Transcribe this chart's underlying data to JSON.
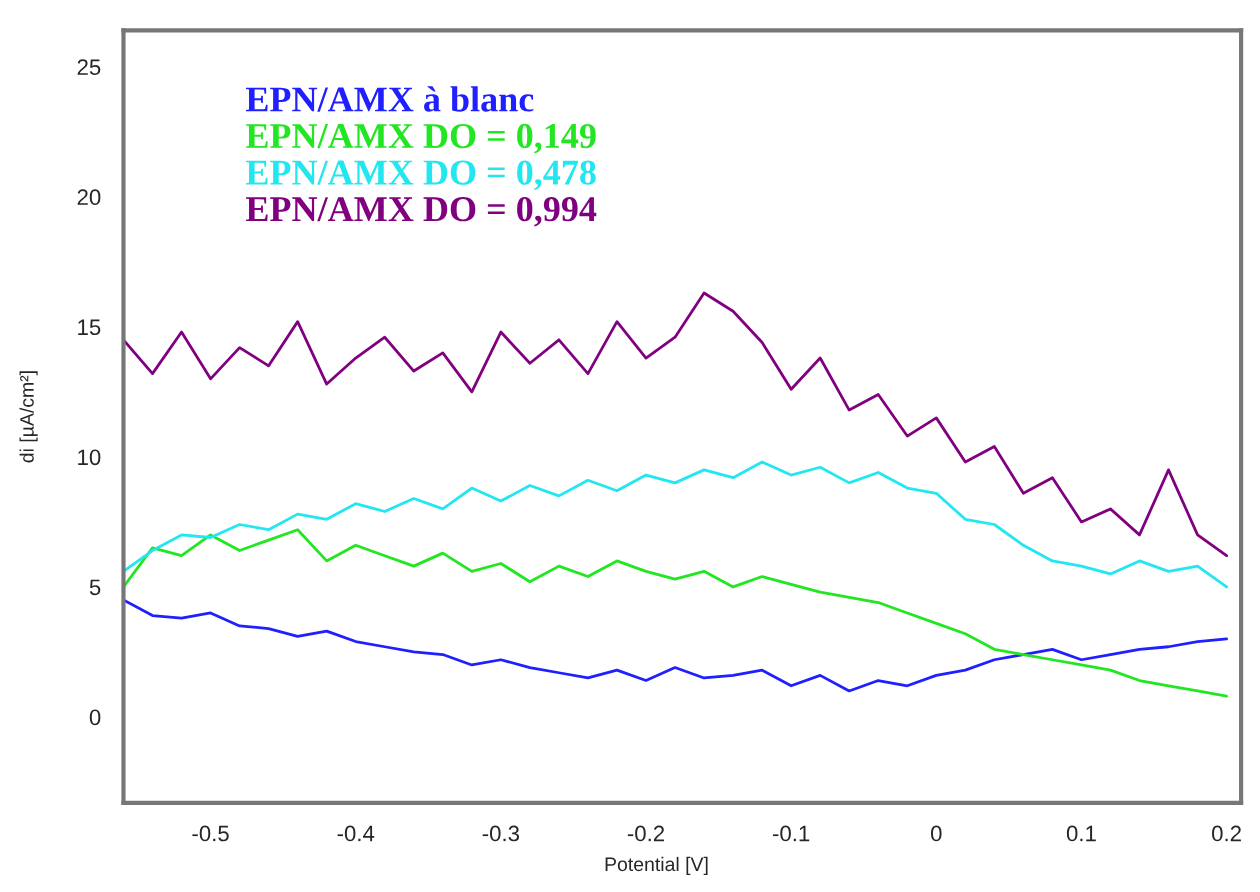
{
  "chart_data": {
    "type": "line",
    "xlabel": "Potential [V]",
    "ylabel": "di [µA/cm²]",
    "x": [
      -0.56,
      -0.54,
      -0.52,
      -0.5,
      -0.48,
      -0.46,
      -0.44,
      -0.42,
      -0.4,
      -0.38,
      -0.36,
      -0.34,
      -0.32,
      -0.3,
      -0.28,
      -0.26,
      -0.24,
      -0.22,
      -0.2,
      -0.18,
      -0.16,
      -0.14,
      -0.12,
      -0.1,
      -0.08,
      -0.06,
      -0.04,
      -0.02,
      0.0,
      0.02,
      0.04,
      0.06,
      0.08,
      0.1,
      0.12,
      0.14,
      0.16,
      0.18,
      0.2
    ],
    "series": [
      {
        "name": "EPN/AMX à blanc",
        "color": "#1f1fff",
        "values": [
          4.5,
          3.9,
          3.8,
          4.0,
          3.5,
          3.4,
          3.1,
          3.3,
          2.9,
          2.7,
          2.5,
          2.4,
          2.0,
          2.2,
          1.9,
          1.7,
          1.5,
          1.8,
          1.4,
          1.9,
          1.5,
          1.6,
          1.8,
          1.2,
          1.6,
          1.0,
          1.4,
          1.2,
          1.6,
          1.8,
          2.2,
          2.4,
          2.6,
          2.2,
          2.4,
          2.6,
          2.7,
          2.9,
          3.0
        ]
      },
      {
        "name": "EPN/AMX DO = 0,149",
        "color": "#22e622",
        "values": [
          5.0,
          6.5,
          6.2,
          7.0,
          6.4,
          6.8,
          7.2,
          6.0,
          6.6,
          6.2,
          5.8,
          6.3,
          5.6,
          5.9,
          5.2,
          5.8,
          5.4,
          6.0,
          5.6,
          5.3,
          5.6,
          5.0,
          5.4,
          5.1,
          4.8,
          4.6,
          4.4,
          4.0,
          3.6,
          3.2,
          2.6,
          2.4,
          2.2,
          2.0,
          1.8,
          1.4,
          1.2,
          1.0,
          0.8
        ]
      },
      {
        "name": "EPN/AMX DO = 0,478",
        "color": "#22e6f0",
        "values": [
          5.6,
          6.4,
          7.0,
          6.9,
          7.4,
          7.2,
          7.8,
          7.6,
          8.2,
          7.9,
          8.4,
          8.0,
          8.8,
          8.3,
          8.9,
          8.5,
          9.1,
          8.7,
          9.3,
          9.0,
          9.5,
          9.2,
          9.8,
          9.3,
          9.6,
          9.0,
          9.4,
          8.8,
          8.6,
          7.6,
          7.4,
          6.6,
          6.0,
          5.8,
          5.5,
          6.0,
          5.6,
          5.8,
          5.0
        ]
      },
      {
        "name": "EPN/AMX DO = 0,994",
        "color": "#800080",
        "values": [
          14.5,
          13.2,
          14.8,
          13.0,
          14.2,
          13.5,
          15.2,
          12.8,
          13.8,
          14.6,
          13.3,
          14.0,
          12.5,
          14.8,
          13.6,
          14.5,
          13.2,
          15.2,
          13.8,
          14.6,
          16.3,
          15.6,
          14.4,
          12.6,
          13.8,
          11.8,
          12.4,
          10.8,
          11.5,
          9.8,
          10.4,
          8.6,
          9.2,
          7.5,
          8.0,
          7.0,
          9.5,
          7.0,
          6.2
        ]
      }
    ],
    "xlim": [
      -0.56,
      0.21
    ],
    "ylim": [
      -3.3,
      26.4
    ],
    "xticks": [
      -0.5,
      -0.4,
      -0.3,
      -0.2,
      -0.1,
      0,
      0.1,
      0.2
    ],
    "yticks": [
      0,
      5,
      10,
      15,
      20,
      25
    ],
    "grid": false,
    "legend": "top left",
    "marker": "none",
    "line_style": "solid"
  }
}
